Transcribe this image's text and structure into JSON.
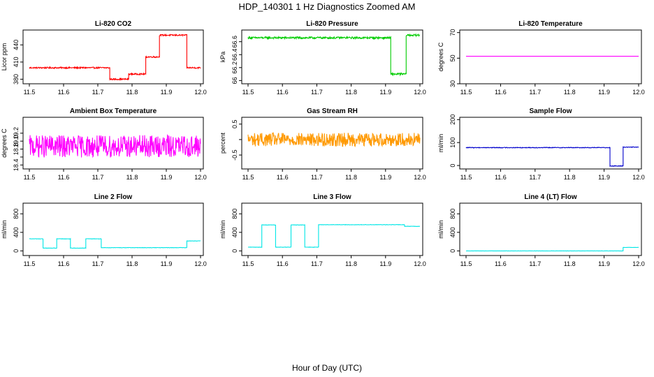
{
  "figure": {
    "title": "HDP_140301  1 Hz Diagnostics Zoomed AM",
    "xlabel": "Hour of Day (UTC)"
  },
  "chart_data": [
    {
      "type": "line",
      "title": "Li-820 CO2",
      "ylabel": "Licor ppm",
      "color": "#ff0000",
      "xlim": [
        11.5,
        12.0
      ],
      "ylim": [
        372,
        466
      ],
      "xticks": [
        11.5,
        11.6,
        11.7,
        11.8,
        11.9,
        12.0
      ],
      "yticks": [
        380,
        410,
        440
      ],
      "noise": 1.2,
      "series": [
        {
          "steps": [
            [
              11.5,
              11.735,
              400
            ],
            [
              11.735,
              11.79,
              380
            ],
            [
              11.79,
              11.84,
              389
            ],
            [
              11.84,
              11.88,
              419
            ],
            [
              11.88,
              11.96,
              457
            ],
            [
              11.96,
              12.0,
              400
            ]
          ]
        }
      ]
    },
    {
      "type": "line",
      "title": "Li-820 Pressure",
      "ylabel": "kPa",
      "color": "#00cc00",
      "xlim": [
        11.5,
        12.0
      ],
      "ylim": [
        65.95,
        66.78
      ],
      "xticks": [
        11.5,
        11.6,
        11.7,
        11.8,
        11.9,
        12.0
      ],
      "yticks": [
        66.0,
        66.2,
        66.4,
        66.6
      ],
      "noise": 0.015,
      "series": [
        {
          "steps": [
            [
              11.5,
              11.915,
              66.66
            ],
            [
              11.915,
              11.96,
              66.1
            ],
            [
              11.96,
              12.0,
              66.7
            ]
          ]
        }
      ]
    },
    {
      "type": "line",
      "title": "Li-820 Temperature",
      "ylabel": "degrees C",
      "color": "#ff00ff",
      "xlim": [
        11.5,
        12.0
      ],
      "ylim": [
        30,
        72
      ],
      "xticks": [
        11.5,
        11.6,
        11.7,
        11.8,
        11.9,
        12.0
      ],
      "yticks": [
        30,
        50,
        70
      ],
      "noise": 0,
      "series": [
        {
          "steps": [
            [
              11.5,
              12.0,
              51.5
            ]
          ]
        }
      ]
    },
    {
      "type": "line",
      "title": "Ambient Box Temperature",
      "ylabel": "degrees C",
      "color": "#ff00ff",
      "xlim": [
        11.5,
        12.0
      ],
      "ylim": [
        18.3,
        19.6
      ],
      "xticks": [
        11.5,
        11.6,
        11.7,
        11.8,
        11.9,
        12.0
      ],
      "yticks": [
        18.4,
        18.6,
        18.8,
        19.0,
        19.2
      ],
      "tick_labels": [
        "18.4",
        "",
        "18.8",
        "19.0",
        "19.2"
      ],
      "noise": 0.28,
      "series": [
        {
          "steps": [
            [
              11.5,
              12.0,
              18.87
            ]
          ]
        }
      ]
    },
    {
      "type": "line",
      "title": "Gas Stream RH",
      "ylabel": "percent",
      "color": "#ff9900",
      "xlim": [
        11.5,
        12.0
      ],
      "ylim": [
        -0.95,
        0.72
      ],
      "xticks": [
        11.5,
        11.6,
        11.7,
        11.8,
        11.9,
        12.0
      ],
      "yticks": [
        -0.5,
        0,
        0.5
      ],
      "tick_labels": [
        "-0.5",
        "",
        "0.5"
      ],
      "noise": 0.22,
      "series": [
        {
          "steps": [
            [
              11.5,
              12.0,
              0.0
            ]
          ]
        }
      ]
    },
    {
      "type": "line",
      "title": "Sample Flow",
      "ylabel": "ml/min",
      "color": "#0000cc",
      "xlim": [
        11.5,
        12.0
      ],
      "ylim": [
        -15,
        210
      ],
      "xticks": [
        11.5,
        11.6,
        11.7,
        11.8,
        11.9,
        12.0
      ],
      "yticks": [
        0,
        100,
        200
      ],
      "noise": 1.5,
      "series": [
        {
          "steps": [
            [
              11.5,
              11.917,
              78
            ],
            [
              11.917,
              11.955,
              -2
            ],
            [
              11.955,
              12.0,
              80
            ]
          ]
        }
      ]
    },
    {
      "type": "line",
      "title": "Line 2 Flow",
      "ylabel": "ml/min",
      "color": "#00e6e6",
      "xlim": [
        11.5,
        12.0
      ],
      "ylim": [
        -100,
        1030
      ],
      "xticks": [
        11.5,
        11.6,
        11.7,
        11.8,
        11.9,
        12.0
      ],
      "yticks": [
        0,
        400,
        800
      ],
      "tick_labels": [
        "0",
        "400",
        "800"
      ],
      "noise": 4,
      "series": [
        {
          "steps": [
            [
              11.5,
              11.54,
              260
            ],
            [
              11.54,
              11.58,
              60
            ],
            [
              11.58,
              11.62,
              260
            ],
            [
              11.62,
              11.665,
              60
            ],
            [
              11.665,
              11.71,
              260
            ],
            [
              11.71,
              11.96,
              70
            ],
            [
              11.96,
              12.0,
              215
            ]
          ]
        }
      ]
    },
    {
      "type": "line",
      "title": "Line 3 Flow",
      "ylabel": "ml/min",
      "color": "#00e6e6",
      "xlim": [
        11.5,
        12.0
      ],
      "ylim": [
        -100,
        1030
      ],
      "xticks": [
        11.5,
        11.6,
        11.7,
        11.8,
        11.9,
        12.0
      ],
      "yticks": [
        0,
        400,
        800
      ],
      "tick_labels": [
        "0",
        "400",
        "800"
      ],
      "noise": 4,
      "series": [
        {
          "steps": [
            [
              11.5,
              11.54,
              80
            ],
            [
              11.54,
              11.58,
              560
            ],
            [
              11.58,
              11.625,
              80
            ],
            [
              11.625,
              11.665,
              560
            ],
            [
              11.665,
              11.705,
              80
            ],
            [
              11.705,
              11.955,
              565
            ],
            [
              11.955,
              12.0,
              530
            ]
          ]
        }
      ]
    },
    {
      "type": "line",
      "title": "Line 4 (LT) Flow",
      "ylabel": "ml/min",
      "color": "#00e6e6",
      "xlim": [
        11.5,
        12.0
      ],
      "ylim": [
        -100,
        1030
      ],
      "xticks": [
        11.5,
        11.6,
        11.7,
        11.8,
        11.9,
        12.0
      ],
      "yticks": [
        0,
        400,
        800
      ],
      "tick_labels": [
        "0",
        "400",
        "800"
      ],
      "noise": 2,
      "series": [
        {
          "steps": [
            [
              11.5,
              11.955,
              0
            ],
            [
              11.955,
              12.0,
              75
            ]
          ]
        }
      ]
    }
  ]
}
